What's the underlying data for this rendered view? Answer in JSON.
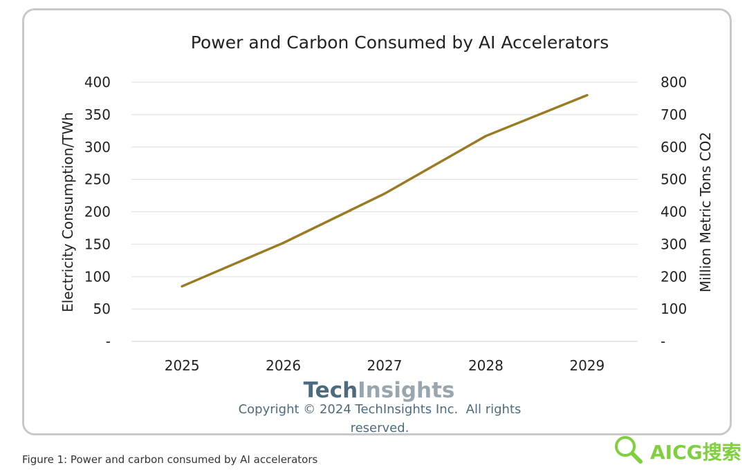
{
  "chart_data": {
    "type": "line",
    "title": "Power and Carbon Consumed by AI Accelerators",
    "categories": [
      "2025",
      "2026",
      "2027",
      "2028",
      "2029"
    ],
    "series": [
      {
        "values": [
          85,
          152,
          228,
          317,
          380
        ],
        "color": "#9a7b24"
      }
    ],
    "ylabel": "Electricity Consumption/TWh",
    "y2label": "Million Metric Tons CO2",
    "ylim": [
      0,
      400
    ],
    "y2lim": [
      0,
      800
    ],
    "yticks": [
      "-",
      "50",
      "100",
      "150",
      "200",
      "250",
      "300",
      "350",
      "400"
    ],
    "y2ticks": [
      "-",
      "100",
      "200",
      "300",
      "400",
      "500",
      "600",
      "700",
      "800"
    ],
    "grid": true,
    "gridColor": "#dedede"
  },
  "branding": {
    "logo_tech": "Tech",
    "logo_insights": "Insights",
    "copyright_line1": "Copyright © 2024 TechInsights Inc.  All rights",
    "copyright_line2": "reserved."
  },
  "caption": "Figure 1: Power and carbon consumed by AI accelerators",
  "watermark": {
    "text": "AICG搜索",
    "color": "#7fcf3f"
  }
}
